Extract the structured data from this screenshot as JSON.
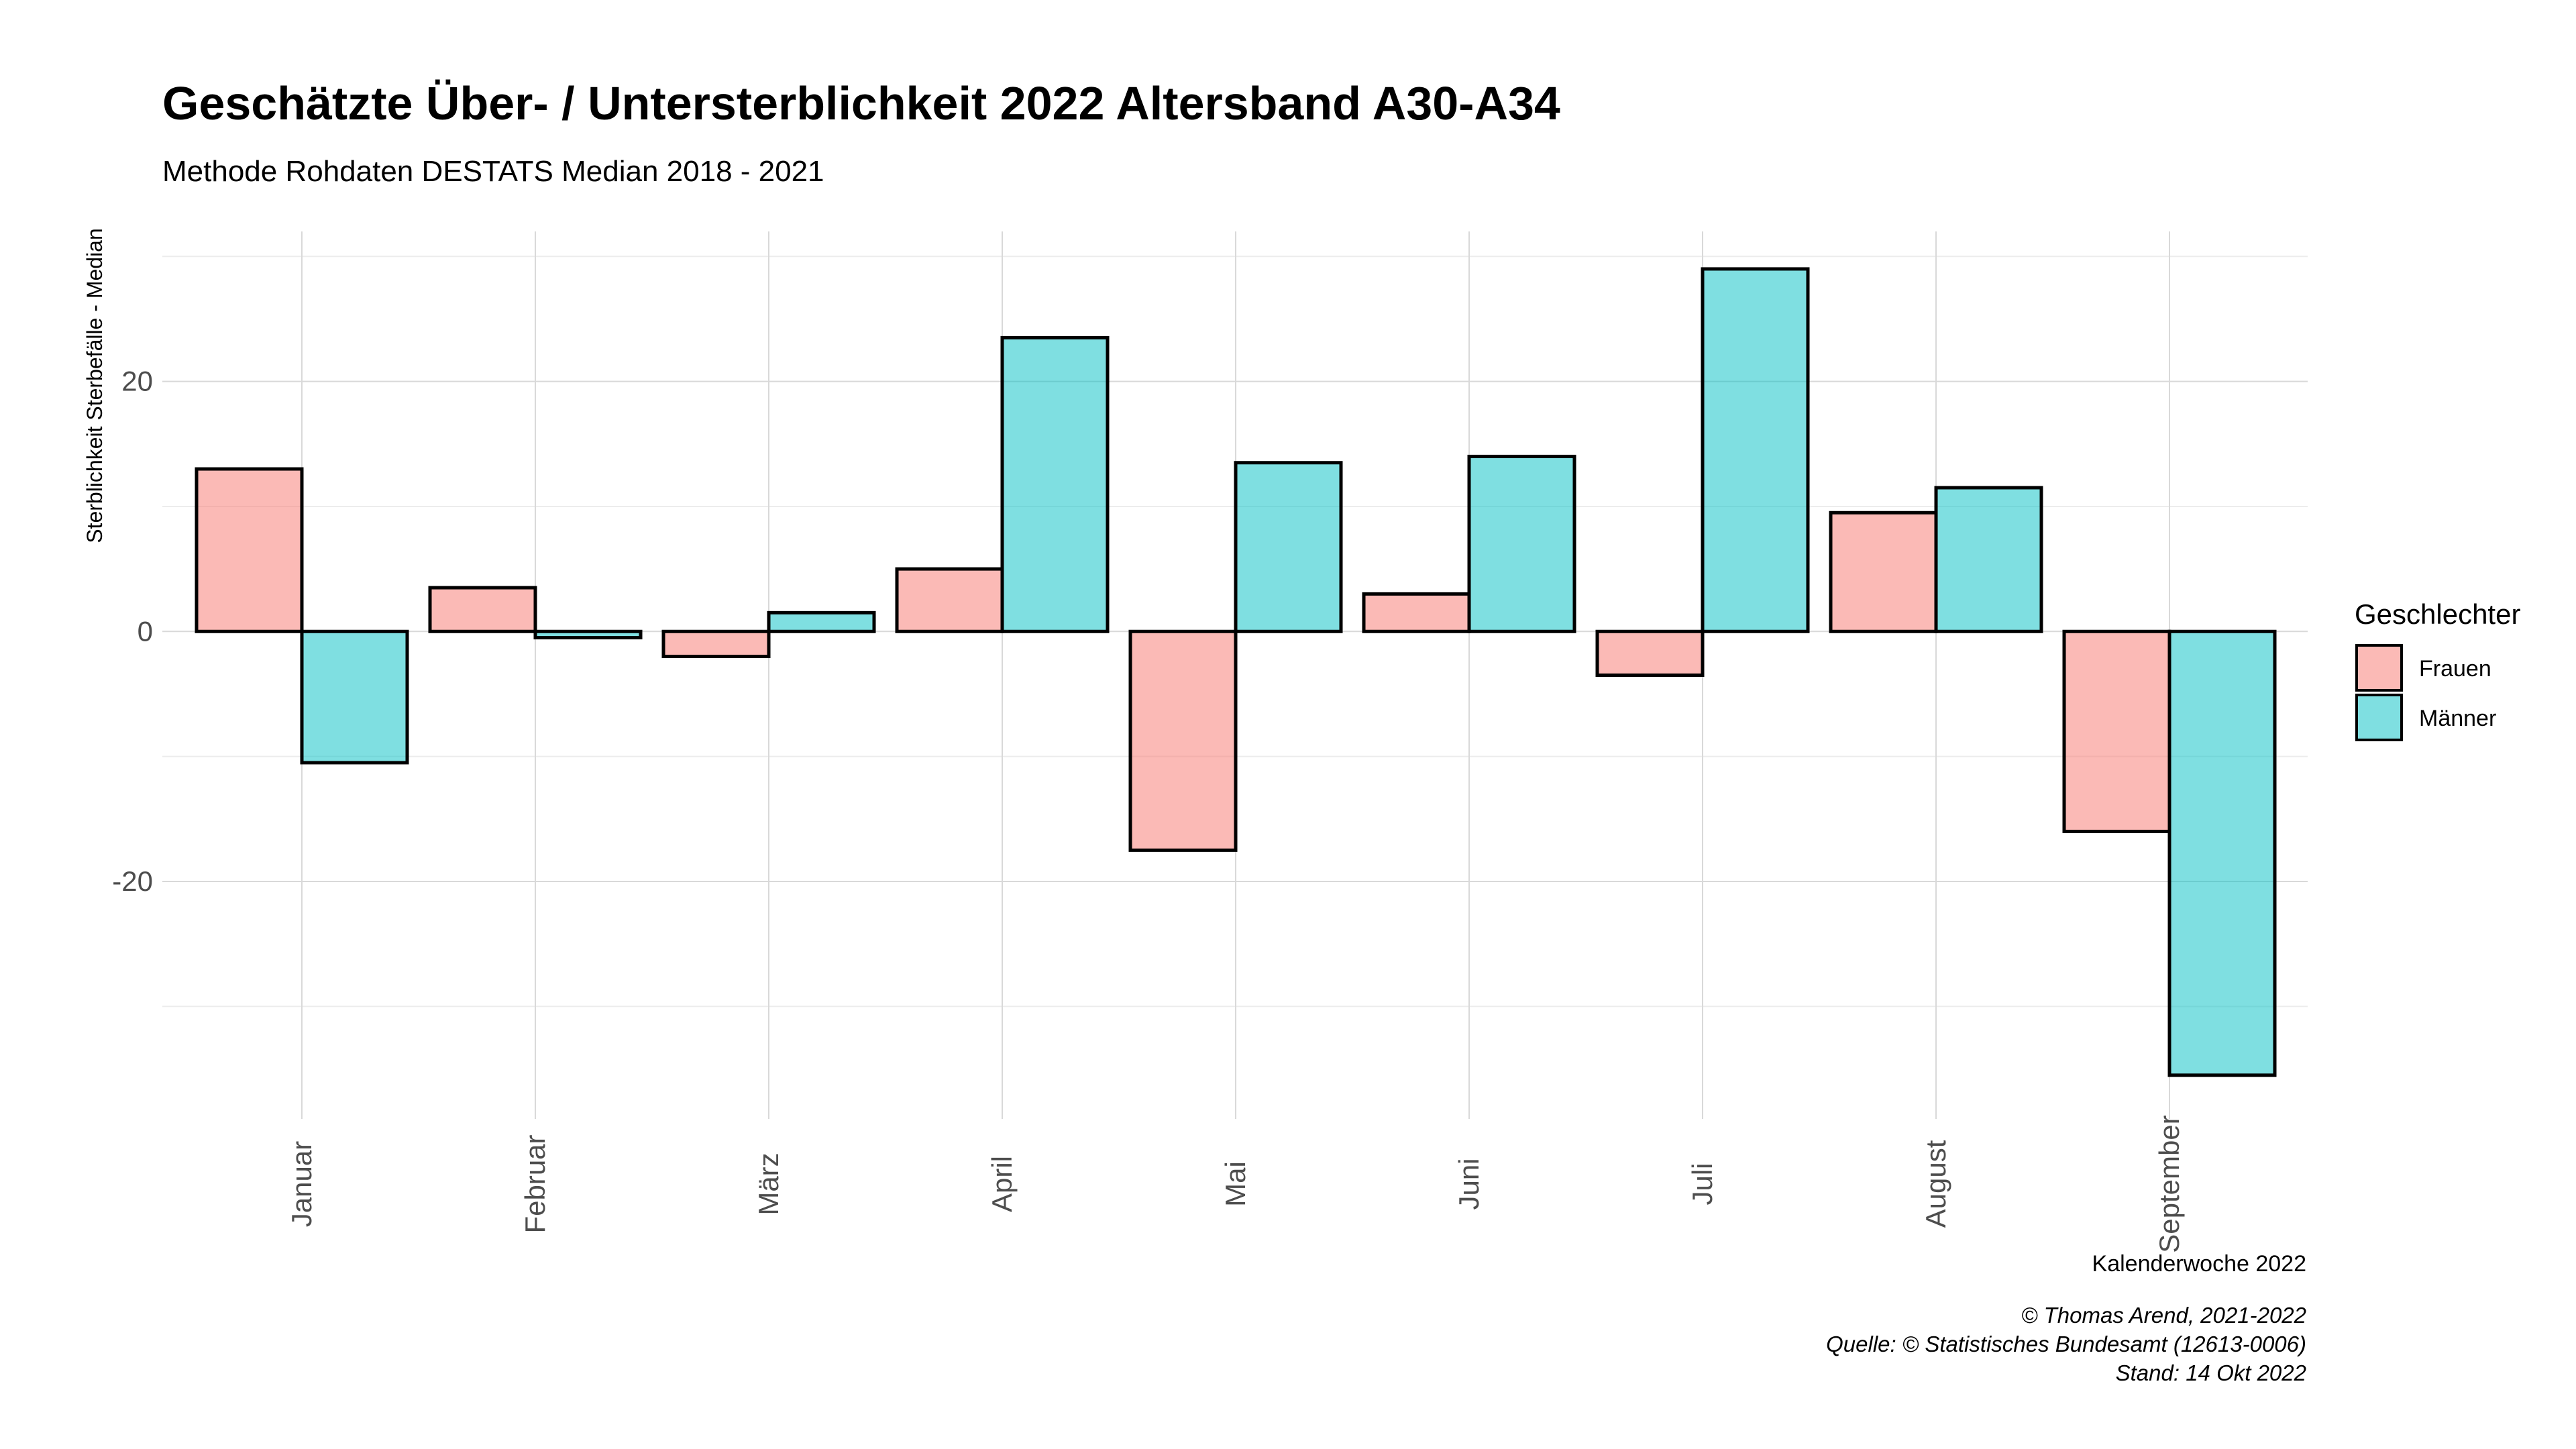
{
  "chart_data": {
    "type": "bar",
    "title": "Geschätzte Über- / Untersterblichkeit 2022 Altersband A30-A34",
    "subtitle": "Methode Rohdaten DESTATS Median 2018 - 2021",
    "xlabel": "Kalenderwoche 2022",
    "ylabel": "Sterblichkeit Sterbefälle - Median",
    "categories": [
      "Januar",
      "Februar",
      "März",
      "April",
      "Mai",
      "Juni",
      "Juli",
      "August",
      "September"
    ],
    "series": [
      {
        "name": "Frauen",
        "color": "#F8766D",
        "values": [
          13,
          3.5,
          -2,
          5,
          -17.5,
          3,
          -3.5,
          9.5,
          -16
        ]
      },
      {
        "name": "Männer",
        "color": "#00BFC4",
        "values": [
          -10.5,
          -0.5,
          1.5,
          23.5,
          13.5,
          14,
          29,
          11.5,
          -35.5
        ]
      }
    ],
    "ylim": [
      -39,
      32
    ],
    "y_ticks": [
      -20,
      0,
      20
    ],
    "y_tick_labels": [
      "-20",
      "0",
      "20"
    ],
    "legend": {
      "title": "Geschlechter",
      "position": "right"
    },
    "grid": true,
    "caption": [
      "© Thomas Arend, 2021-2022",
      "Quelle: © Statistisches Bundesamt (12613-0006)",
      "Stand: 14 Okt 2022"
    ]
  }
}
